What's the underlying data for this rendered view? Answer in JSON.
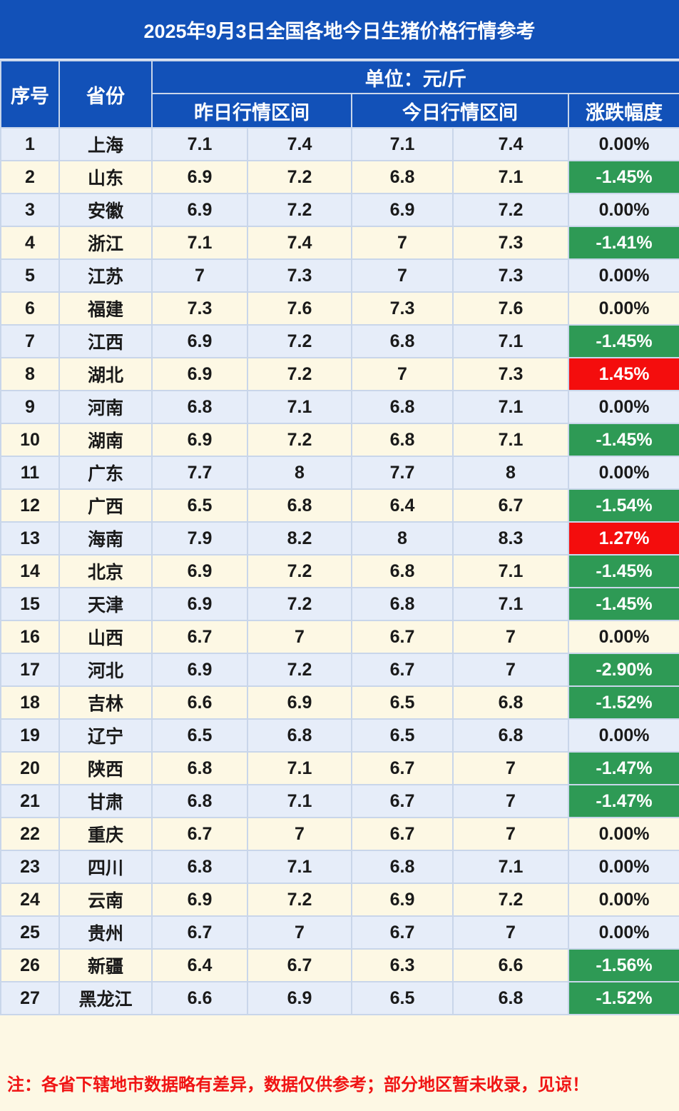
{
  "title": "2025年9月3日全国各地今日生猪价格行情参考",
  "headers": {
    "seq": "序号",
    "province": "省份",
    "unit": "单位：元/斤",
    "yesterday": "昨日行情区间",
    "today": "今日行情区间",
    "change": "涨跌幅度"
  },
  "rows": [
    {
      "seq": "1",
      "province": "上海",
      "y_low": "7.1",
      "y_high": "7.4",
      "t_low": "7.1",
      "t_high": "7.4",
      "change": "0.00%",
      "trend": "flat"
    },
    {
      "seq": "2",
      "province": "山东",
      "y_low": "6.9",
      "y_high": "7.2",
      "t_low": "6.8",
      "t_high": "7.1",
      "change": "-1.45%",
      "trend": "down"
    },
    {
      "seq": "3",
      "province": "安徽",
      "y_low": "6.9",
      "y_high": "7.2",
      "t_low": "6.9",
      "t_high": "7.2",
      "change": "0.00%",
      "trend": "flat"
    },
    {
      "seq": "4",
      "province": "浙江",
      "y_low": "7.1",
      "y_high": "7.4",
      "t_low": "7",
      "t_high": "7.3",
      "change": "-1.41%",
      "trend": "down"
    },
    {
      "seq": "5",
      "province": "江苏",
      "y_low": "7",
      "y_high": "7.3",
      "t_low": "7",
      "t_high": "7.3",
      "change": "0.00%",
      "trend": "flat"
    },
    {
      "seq": "6",
      "province": "福建",
      "y_low": "7.3",
      "y_high": "7.6",
      "t_low": "7.3",
      "t_high": "7.6",
      "change": "0.00%",
      "trend": "flat"
    },
    {
      "seq": "7",
      "province": "江西",
      "y_low": "6.9",
      "y_high": "7.2",
      "t_low": "6.8",
      "t_high": "7.1",
      "change": "-1.45%",
      "trend": "down"
    },
    {
      "seq": "8",
      "province": "湖北",
      "y_low": "6.9",
      "y_high": "7.2",
      "t_low": "7",
      "t_high": "7.3",
      "change": "1.45%",
      "trend": "up"
    },
    {
      "seq": "9",
      "province": "河南",
      "y_low": "6.8",
      "y_high": "7.1",
      "t_low": "6.8",
      "t_high": "7.1",
      "change": "0.00%",
      "trend": "flat"
    },
    {
      "seq": "10",
      "province": "湖南",
      "y_low": "6.9",
      "y_high": "7.2",
      "t_low": "6.8",
      "t_high": "7.1",
      "change": "-1.45%",
      "trend": "down"
    },
    {
      "seq": "11",
      "province": "广东",
      "y_low": "7.7",
      "y_high": "8",
      "t_low": "7.7",
      "t_high": "8",
      "change": "0.00%",
      "trend": "flat"
    },
    {
      "seq": "12",
      "province": "广西",
      "y_low": "6.5",
      "y_high": "6.8",
      "t_low": "6.4",
      "t_high": "6.7",
      "change": "-1.54%",
      "trend": "down"
    },
    {
      "seq": "13",
      "province": "海南",
      "y_low": "7.9",
      "y_high": "8.2",
      "t_low": "8",
      "t_high": "8.3",
      "change": "1.27%",
      "trend": "up"
    },
    {
      "seq": "14",
      "province": "北京",
      "y_low": "6.9",
      "y_high": "7.2",
      "t_low": "6.8",
      "t_high": "7.1",
      "change": "-1.45%",
      "trend": "down"
    },
    {
      "seq": "15",
      "province": "天津",
      "y_low": "6.9",
      "y_high": "7.2",
      "t_low": "6.8",
      "t_high": "7.1",
      "change": "-1.45%",
      "trend": "down"
    },
    {
      "seq": "16",
      "province": "山西",
      "y_low": "6.7",
      "y_high": "7",
      "t_low": "6.7",
      "t_high": "7",
      "change": "0.00%",
      "trend": "flat"
    },
    {
      "seq": "17",
      "province": "河北",
      "y_low": "6.9",
      "y_high": "7.2",
      "t_low": "6.7",
      "t_high": "7",
      "change": "-2.90%",
      "trend": "down"
    },
    {
      "seq": "18",
      "province": "吉林",
      "y_low": "6.6",
      "y_high": "6.9",
      "t_low": "6.5",
      "t_high": "6.8",
      "change": "-1.52%",
      "trend": "down"
    },
    {
      "seq": "19",
      "province": "辽宁",
      "y_low": "6.5",
      "y_high": "6.8",
      "t_low": "6.5",
      "t_high": "6.8",
      "change": "0.00%",
      "trend": "flat"
    },
    {
      "seq": "20",
      "province": "陕西",
      "y_low": "6.8",
      "y_high": "7.1",
      "t_low": "6.7",
      "t_high": "7",
      "change": "-1.47%",
      "trend": "down"
    },
    {
      "seq": "21",
      "province": "甘肃",
      "y_low": "6.8",
      "y_high": "7.1",
      "t_low": "6.7",
      "t_high": "7",
      "change": "-1.47%",
      "trend": "down"
    },
    {
      "seq": "22",
      "province": "重庆",
      "y_low": "6.7",
      "y_high": "7",
      "t_low": "6.7",
      "t_high": "7",
      "change": "0.00%",
      "trend": "flat"
    },
    {
      "seq": "23",
      "province": "四川",
      "y_low": "6.8",
      "y_high": "7.1",
      "t_low": "6.8",
      "t_high": "7.1",
      "change": "0.00%",
      "trend": "flat"
    },
    {
      "seq": "24",
      "province": "云南",
      "y_low": "6.9",
      "y_high": "7.2",
      "t_low": "6.9",
      "t_high": "7.2",
      "change": "0.00%",
      "trend": "flat"
    },
    {
      "seq": "25",
      "province": "贵州",
      "y_low": "6.7",
      "y_high": "7",
      "t_low": "6.7",
      "t_high": "7",
      "change": "0.00%",
      "trend": "flat"
    },
    {
      "seq": "26",
      "province": "新疆",
      "y_low": "6.4",
      "y_high": "6.7",
      "t_low": "6.3",
      "t_high": "6.6",
      "change": "-1.56%",
      "trend": "down"
    },
    {
      "seq": "27",
      "province": "黑龙江",
      "y_low": "6.6",
      "y_high": "6.9",
      "t_low": "6.5",
      "t_high": "6.8",
      "change": "-1.52%",
      "trend": "down"
    }
  ],
  "colors": {
    "header_bg": "#1251b8",
    "row_odd_bg": "#e6edf9",
    "row_even_bg": "#fdf8e4",
    "down_bg": "#2e9a55",
    "up_bg": "#f40d0d",
    "note_text": "#f01414"
  },
  "note": "注：各省下辖地市数据略有差异，数据仅供参考；部分地区暂未收录，见谅！"
}
